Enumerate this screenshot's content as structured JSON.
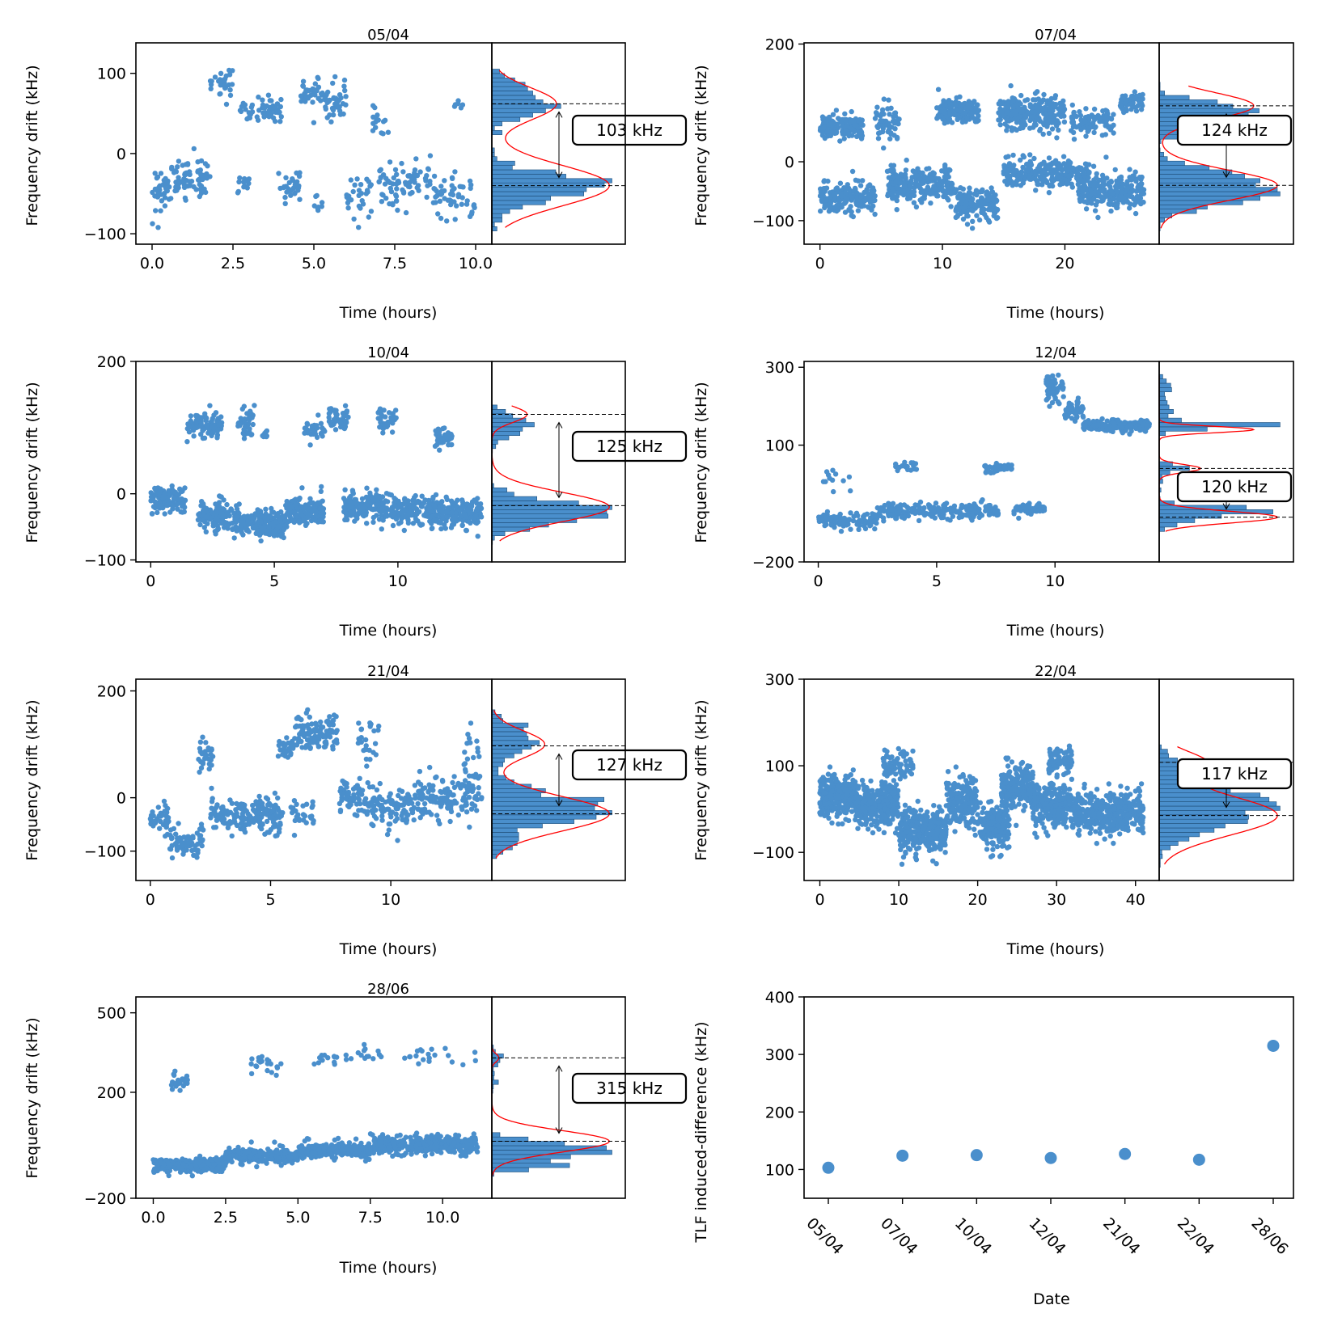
{
  "figure": {
    "point_color": "#4a8fcc",
    "hist_fill": "#4a8fcc",
    "fit_color": "#ff0000",
    "axis_color": "#000000"
  },
  "chart_data": [
    {
      "type": "scatter",
      "title": "05/04",
      "xlabel": "Time (hours)",
      "ylabel": "Frequency drift (kHz)",
      "xlim": [
        -0.5,
        10.5
      ],
      "ylim": [
        -113,
        138
      ],
      "xticks": [
        0,
        2.5,
        5,
        7.5,
        10
      ],
      "xtick_labels": [
        "0.0",
        "2.5",
        "5.0",
        "7.5",
        "10.0"
      ],
      "yticks": [
        -100,
        0,
        100
      ],
      "ytick_labels": [
        "−100",
        "0",
        "100"
      ],
      "clusters": [
        {
          "x": [
            0,
            0.6
          ],
          "y": -45,
          "spread": 28,
          "n": 35
        },
        {
          "x": [
            0.6,
            1.8
          ],
          "y": -30,
          "spread": 22,
          "n": 70
        },
        {
          "x": [
            1.8,
            2.5
          ],
          "y": 88,
          "spread": 12,
          "n": 28
        },
        {
          "x": [
            2.7,
            4.0
          ],
          "y": 55,
          "spread": 14,
          "n": 55
        },
        {
          "x": [
            2.6,
            3.0
          ],
          "y": -38,
          "spread": 15,
          "n": 12
        },
        {
          "x": [
            3.9,
            4.6
          ],
          "y": -40,
          "spread": 20,
          "n": 28
        },
        {
          "x": [
            4.6,
            5.2
          ],
          "y": 80,
          "spread": 18,
          "n": 32
        },
        {
          "x": [
            5.2,
            6.0
          ],
          "y": 65,
          "spread": 20,
          "n": 45
        },
        {
          "x": [
            5.0,
            5.3
          ],
          "y": -65,
          "spread": 12,
          "n": 8
        },
        {
          "x": [
            6.0,
            6.8
          ],
          "y": -55,
          "spread": 25,
          "n": 30
        },
        {
          "x": [
            6.8,
            7.3
          ],
          "y": 40,
          "spread": 20,
          "n": 15
        },
        {
          "x": [
            7.0,
            8.6
          ],
          "y": -35,
          "spread": 28,
          "n": 75
        },
        {
          "x": [
            8.6,
            10.0
          ],
          "y": -55,
          "spread": 25,
          "n": 55
        },
        {
          "x": [
            9.3,
            9.6
          ],
          "y": 60,
          "spread": 8,
          "n": 6
        }
      ],
      "histogram": {
        "peaks": [
          {
            "mu": 62,
            "sigma": 20,
            "amp": 0.55
          },
          {
            "mu": -40,
            "sigma": 25,
            "amp": 1.0
          }
        ],
        "dashed_lines": [
          62,
          -40
        ],
        "label": "103 kHz"
      }
    },
    {
      "type": "scatter",
      "title": "07/04",
      "xlabel": "Time (hours)",
      "ylabel": "Frequency drift (kHz)",
      "xlim": [
        -1.3,
        27.7
      ],
      "ylim": [
        -140,
        202
      ],
      "xticks": [
        0,
        10,
        20
      ],
      "xtick_labels": [
        "0",
        "10",
        "20"
      ],
      "yticks": [
        -100,
        0,
        200
      ],
      "ytick_labels": [
        "−100",
        "0",
        "200"
      ],
      "clusters": [
        {
          "x": [
            0,
            3.5
          ],
          "y": 60,
          "spread": 18,
          "n": 150
        },
        {
          "x": [
            0,
            4.5
          ],
          "y": -60,
          "spread": 25,
          "n": 180
        },
        {
          "x": [
            4.5,
            6.5
          ],
          "y": 70,
          "spread": 22,
          "n": 60
        },
        {
          "x": [
            5.5,
            11.0
          ],
          "y": -40,
          "spread": 25,
          "n": 260
        },
        {
          "x": [
            9.5,
            13.0
          ],
          "y": 85,
          "spread": 20,
          "n": 150
        },
        {
          "x": [
            11.0,
            14.5
          ],
          "y": -70,
          "spread": 25,
          "n": 160
        },
        {
          "x": [
            14.5,
            20.0
          ],
          "y": 85,
          "spread": 25,
          "n": 240
        },
        {
          "x": [
            15.0,
            22.0
          ],
          "y": -20,
          "spread": 22,
          "n": 250
        },
        {
          "x": [
            20.5,
            24.0
          ],
          "y": 70,
          "spread": 20,
          "n": 90
        },
        {
          "x": [
            21.0,
            26.5
          ],
          "y": -50,
          "spread": 28,
          "n": 220
        },
        {
          "x": [
            24.5,
            26.5
          ],
          "y": 100,
          "spread": 18,
          "n": 60
        }
      ],
      "histogram": {
        "peaks": [
          {
            "mu": 95,
            "sigma": 22,
            "amp": 0.8
          },
          {
            "mu": -40,
            "sigma": 25,
            "amp": 1.0
          }
        ],
        "dashed_lines": [
          95,
          -40
        ],
        "label": "124 kHz"
      }
    },
    {
      "type": "scatter",
      "title": "10/04",
      "xlabel": "Time (hours)",
      "ylabel": "Frequency drift (kHz)",
      "xlim": [
        -0.6,
        13.8
      ],
      "ylim": [
        -103,
        200
      ],
      "xticks": [
        0,
        5,
        10
      ],
      "xtick_labels": [
        "0",
        "5",
        "10"
      ],
      "yticks": [
        -100,
        0,
        200
      ],
      "ytick_labels": [
        "−100",
        "0",
        "200"
      ],
      "clusters": [
        {
          "x": [
            0,
            1.4
          ],
          "y": -10,
          "spread": 18,
          "n": 110
        },
        {
          "x": [
            1.4,
            2.9
          ],
          "y": 105,
          "spread": 18,
          "n": 90
        },
        {
          "x": [
            1.9,
            3.6
          ],
          "y": -35,
          "spread": 20,
          "n": 150
        },
        {
          "x": [
            3.5,
            4.2
          ],
          "y": 108,
          "spread": 18,
          "n": 45
        },
        {
          "x": [
            3.6,
            5.5
          ],
          "y": -45,
          "spread": 18,
          "n": 200
        },
        {
          "x": [
            4.5,
            4.7
          ],
          "y": 90,
          "spread": 8,
          "n": 10
        },
        {
          "x": [
            5.5,
            7.0
          ],
          "y": -25,
          "spread": 20,
          "n": 150
        },
        {
          "x": [
            6.2,
            7.1
          ],
          "y": 95,
          "spread": 12,
          "n": 35
        },
        {
          "x": [
            7.2,
            8.0
          ],
          "y": 110,
          "spread": 15,
          "n": 50
        },
        {
          "x": [
            7.8,
            9.6
          ],
          "y": -20,
          "spread": 20,
          "n": 160
        },
        {
          "x": [
            9.2,
            10.0
          ],
          "y": 112,
          "spread": 15,
          "n": 40
        },
        {
          "x": [
            9.6,
            11.8
          ],
          "y": -25,
          "spread": 20,
          "n": 190
        },
        {
          "x": [
            11.5,
            12.2
          ],
          "y": 85,
          "spread": 15,
          "n": 40
        },
        {
          "x": [
            11.8,
            13.4
          ],
          "y": -30,
          "spread": 20,
          "n": 140
        }
      ],
      "histogram": {
        "peaks": [
          {
            "mu": 120,
            "sigma": 12,
            "amp": 0.3
          },
          {
            "mu": -20,
            "sigma": 22,
            "amp": 1.0
          }
        ],
        "dashed_lines": [
          120,
          -18
        ],
        "label": "125 kHz"
      }
    },
    {
      "type": "scatter",
      "title": "12/04",
      "xlabel": "Time (hours)",
      "ylabel": "Frequency drift (kHz)",
      "xlim": [
        -0.6,
        14.4
      ],
      "ylim": [
        -200,
        315
      ],
      "xticks": [
        0,
        5,
        10
      ],
      "xtick_labels": [
        "0",
        "5",
        "10"
      ],
      "yticks": [
        -200,
        100,
        300
      ],
      "ytick_labels": [
        "−200",
        "100",
        "300"
      ],
      "clusters": [
        {
          "x": [
            0,
            2.5
          ],
          "y": -95,
          "spread": 18,
          "n": 90
        },
        {
          "x": [
            0.2,
            1.4
          ],
          "y": 10,
          "spread": 25,
          "n": 12
        },
        {
          "x": [
            2.5,
            4.5
          ],
          "y": -70,
          "spread": 18,
          "n": 90
        },
        {
          "x": [
            3.2,
            4.2
          ],
          "y": 45,
          "spread": 15,
          "n": 18
        },
        {
          "x": [
            4.5,
            7.6
          ],
          "y": -70,
          "spread": 18,
          "n": 140
        },
        {
          "x": [
            7.0,
            8.2
          ],
          "y": 40,
          "spread": 12,
          "n": 40
        },
        {
          "x": [
            8.2,
            9.6
          ],
          "y": -65,
          "spread": 12,
          "n": 60
        },
        {
          "x": [
            9.6,
            10.4
          ],
          "y": 240,
          "spread": 35,
          "n": 55
        },
        {
          "x": [
            10.4,
            11.2
          ],
          "y": 190,
          "spread": 20,
          "n": 45
        },
        {
          "x": [
            11.2,
            14.0
          ],
          "y": 150,
          "spread": 12,
          "n": 220
        }
      ],
      "histogram": {
        "peaks": [
          {
            "mu": 140,
            "sigma": 8,
            "amp": 0.8
          },
          {
            "mu": 40,
            "sigma": 10,
            "amp": 0.35
          },
          {
            "mu": -85,
            "sigma": 15,
            "amp": 1.0
          }
        ],
        "dashed_lines": [
          40,
          -85
        ],
        "label": "120 kHz"
      }
    },
    {
      "type": "scatter",
      "title": "21/04",
      "xlabel": "Time (hours)",
      "ylabel": "Frequency drift (kHz)",
      "xlim": [
        -0.6,
        14.2
      ],
      "ylim": [
        -155,
        222
      ],
      "xticks": [
        0,
        5,
        10
      ],
      "xtick_labels": [
        "0",
        "5",
        "10"
      ],
      "yticks": [
        -100,
        0,
        200
      ],
      "ytick_labels": [
        "−100",
        "0",
        "200"
      ],
      "clusters": [
        {
          "x": [
            0,
            0.8
          ],
          "y": -40,
          "spread": 30,
          "n": 40
        },
        {
          "x": [
            0.8,
            2.2
          ],
          "y": -80,
          "spread": 25,
          "n": 70
        },
        {
          "x": [
            2.0,
            2.6
          ],
          "y": 80,
          "spread": 35,
          "n": 30
        },
        {
          "x": [
            2.5,
            5.5
          ],
          "y": -35,
          "spread": 30,
          "n": 180
        },
        {
          "x": [
            5.3,
            6.0
          ],
          "y": 90,
          "spread": 20,
          "n": 30
        },
        {
          "x": [
            6.0,
            7.8
          ],
          "y": 120,
          "spread": 30,
          "n": 110
        },
        {
          "x": [
            5.8,
            6.8
          ],
          "y": -30,
          "spread": 25,
          "n": 30
        },
        {
          "x": [
            7.8,
            9.0
          ],
          "y": 0,
          "spread": 30,
          "n": 60
        },
        {
          "x": [
            8.5,
            9.5
          ],
          "y": 110,
          "spread": 35,
          "n": 25
        },
        {
          "x": [
            9.0,
            11.0
          ],
          "y": -20,
          "spread": 35,
          "n": 110
        },
        {
          "x": [
            11.0,
            13.8
          ],
          "y": 0,
          "spread": 35,
          "n": 140
        },
        {
          "x": [
            13.0,
            13.8
          ],
          "y": 80,
          "spread": 40,
          "n": 20
        }
      ],
      "histogram": {
        "peaks": [
          {
            "mu": 100,
            "sigma": 25,
            "amp": 0.45
          },
          {
            "mu": -30,
            "sigma": 32,
            "amp": 1.0
          }
        ],
        "dashed_lines": [
          97,
          -30
        ],
        "label": "127 kHz"
      }
    },
    {
      "type": "scatter",
      "title": "22/04",
      "xlabel": "Time (hours)",
      "ylabel": "Frequency drift (kHz)",
      "xlim": [
        -2,
        43
      ],
      "ylim": [
        -165,
        300
      ],
      "xticks": [
        0,
        10,
        20,
        30,
        40
      ],
      "xtick_labels": [
        "0",
        "10",
        "20",
        "30",
        "40"
      ],
      "yticks": [
        -100,
        100,
        300
      ],
      "ytick_labels": [
        "−100",
        "100",
        "300"
      ],
      "clusters": [
        {
          "x": [
            0,
            4.5
          ],
          "y": 30,
          "spread": 45,
          "n": 300
        },
        {
          "x": [
            4.5,
            10.0
          ],
          "y": 10,
          "spread": 40,
          "n": 300
        },
        {
          "x": [
            8.0,
            12.0
          ],
          "y": 100,
          "spread": 30,
          "n": 80
        },
        {
          "x": [
            10.0,
            16.0
          ],
          "y": -50,
          "spread": 45,
          "n": 300
        },
        {
          "x": [
            16.0,
            20.0
          ],
          "y": 20,
          "spread": 50,
          "n": 220
        },
        {
          "x": [
            20.0,
            24.0
          ],
          "y": -40,
          "spread": 45,
          "n": 200
        },
        {
          "x": [
            23.0,
            27.0
          ],
          "y": 50,
          "spread": 45,
          "n": 220
        },
        {
          "x": [
            27.0,
            32.0
          ],
          "y": 10,
          "spread": 45,
          "n": 250
        },
        {
          "x": [
            29.0,
            32.0
          ],
          "y": 110,
          "spread": 30,
          "n": 80
        },
        {
          "x": [
            32.0,
            41.0
          ],
          "y": -10,
          "spread": 45,
          "n": 400
        }
      ],
      "histogram": {
        "peaks": [
          {
            "mu": 105,
            "sigma": 28,
            "amp": 0.4
          },
          {
            "mu": -15,
            "sigma": 45,
            "amp": 1.0
          }
        ],
        "dashed_lines": [
          108,
          -15
        ],
        "label": "117 kHz"
      }
    },
    {
      "type": "scatter",
      "title": "28/06",
      "xlabel": "Time (hours)",
      "ylabel": "Frequency drift (kHz)",
      "xlim": [
        -0.6,
        11.7
      ],
      "ylim": [
        -200,
        560
      ],
      "xticks": [
        0,
        2.5,
        5,
        7.5,
        10
      ],
      "xtick_labels": [
        "0.0",
        "2.5",
        "5.0",
        "7.5",
        "10.0"
      ],
      "yticks": [
        -200,
        200,
        500
      ],
      "ytick_labels": [
        "−200",
        "200",
        "500"
      ],
      "clusters": [
        {
          "x": [
            0,
            2.5
          ],
          "y": -75,
          "spread": 22,
          "n": 300
        },
        {
          "x": [
            2.5,
            5.0
          ],
          "y": -40,
          "spread": 25,
          "n": 260
        },
        {
          "x": [
            5.0,
            7.5
          ],
          "y": -20,
          "spread": 25,
          "n": 260
        },
        {
          "x": [
            7.5,
            11.2
          ],
          "y": 0,
          "spread": 28,
          "n": 380
        },
        {
          "x": [
            0.6,
            1.2
          ],
          "y": 240,
          "spread": 30,
          "n": 25
        },
        {
          "x": [
            3.3,
            4.5
          ],
          "y": 310,
          "spread": 40,
          "n": 20
        },
        {
          "x": [
            5.5,
            6.5
          ],
          "y": 320,
          "spread": 30,
          "n": 12
        },
        {
          "x": [
            6.5,
            8.0
          ],
          "y": 340,
          "spread": 30,
          "n": 15
        },
        {
          "x": [
            8.5,
            11.2
          ],
          "y": 340,
          "spread": 35,
          "n": 20
        }
      ],
      "histogram": {
        "peaks": [
          {
            "mu": 330,
            "sigma": 15,
            "amp": 0.06
          },
          {
            "mu": 15,
            "sigma": 40,
            "amp": 1.0
          }
        ],
        "dashed_lines": [
          330,
          15
        ],
        "label": "315 kHz"
      }
    },
    {
      "type": "scatter",
      "title": "",
      "xlabel": "Date",
      "ylabel": "TLF induced-difference (kHz)",
      "categories": [
        "05/04",
        "07/04",
        "10/04",
        "12/04",
        "21/04",
        "22/04",
        "28/06"
      ],
      "values": [
        103,
        124,
        125,
        120,
        127,
        117,
        315
      ],
      "ylim": [
        50,
        400
      ],
      "yticks": [
        100,
        200,
        300,
        400
      ],
      "ytick_labels": [
        "100",
        "200",
        "300",
        "400"
      ]
    }
  ]
}
